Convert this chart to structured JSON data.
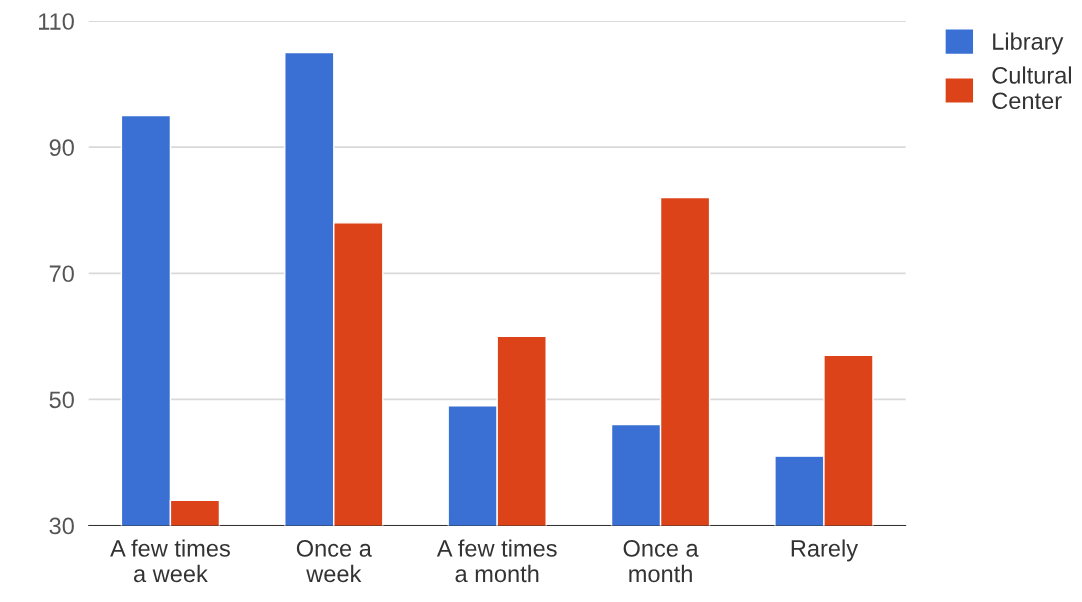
{
  "chart_data": {
    "type": "bar",
    "categories": [
      "A few times\na week",
      "Once a\nweek",
      "A few times\na month",
      "Once a\nmonth",
      "Rarely"
    ],
    "series": [
      {
        "name": "Library",
        "color": "#3a70d3",
        "values": [
          95,
          105,
          49,
          46,
          41
        ]
      },
      {
        "name": "Cultural\nCenter",
        "color": "#dc4319",
        "values": [
          34,
          78,
          60,
          82,
          57
        ]
      }
    ],
    "ylim": [
      30,
      110
    ],
    "yticks": [
      30,
      50,
      70,
      90,
      110
    ],
    "grid": "y",
    "legend": "top right"
  }
}
